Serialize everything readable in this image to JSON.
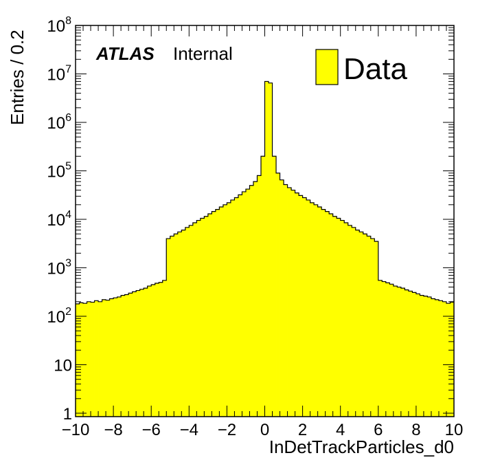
{
  "chart_data": {
    "type": "histogram",
    "xlabel": "InDetTrackParticles_d0",
    "ylabel": "Entries / 0.2",
    "xlim": [
      -10,
      10
    ],
    "ylim": [
      0.85,
      100000000
    ],
    "yscale": "log",
    "bin_width": 0.2,
    "x_ticks": [
      "−10",
      "−8",
      "−6",
      "−4",
      "−2",
      "0",
      "2",
      "4",
      "6",
      "8",
      "10"
    ],
    "y_ticks": [
      {
        "value": 1,
        "base": "1",
        "exp": ""
      },
      {
        "value": 10,
        "base": "10",
        "exp": ""
      },
      {
        "value": 100,
        "base": "10",
        "exp": "2"
      },
      {
        "value": 1000,
        "base": "10",
        "exp": "3"
      },
      {
        "value": 10000,
        "base": "10",
        "exp": "4"
      },
      {
        "value": 100000,
        "base": "10",
        "exp": "5"
      },
      {
        "value": 1000000,
        "base": "10",
        "exp": "6"
      },
      {
        "value": 10000000,
        "base": "10",
        "exp": "7"
      },
      {
        "value": 100000000,
        "base": "10",
        "exp": "8"
      }
    ],
    "label_atlas": "ATLAS",
    "label_status": "Internal",
    "legend": {
      "placement": "top-right",
      "entries": [
        {
          "label": "Data",
          "color": "#ffff00"
        }
      ]
    },
    "fill_color": "#ffff00",
    "line_color": "#000000",
    "series": [
      {
        "name": "Data",
        "bin_edges_start": -10,
        "values": [
          180,
          190,
          185,
          200,
          195,
          210,
          200,
          220,
          215,
          230,
          240,
          250,
          270,
          280,
          300,
          320,
          340,
          360,
          380,
          420,
          450,
          480,
          500,
          550,
          4000,
          4500,
          5000,
          5500,
          6000,
          6800,
          7500,
          8500,
          9500,
          10500,
          11500,
          13000,
          14500,
          16000,
          18000,
          20000,
          22000,
          25000,
          28000,
          32000,
          37000,
          42000,
          50000,
          60000,
          80000,
          200000,
          7000000,
          6500000,
          200000,
          90000,
          65000,
          52000,
          45000,
          40000,
          35000,
          31000,
          28000,
          25000,
          22000,
          20000,
          18000,
          16000,
          14500,
          13000,
          11500,
          10500,
          9500,
          8500,
          7500,
          6800,
          6000,
          5500,
          5000,
          4500,
          4000,
          3500,
          550,
          520,
          490,
          460,
          420,
          400,
          380,
          350,
          330,
          310,
          290,
          270,
          260,
          250,
          230,
          220,
          210,
          200,
          185,
          195
        ]
      }
    ]
  }
}
